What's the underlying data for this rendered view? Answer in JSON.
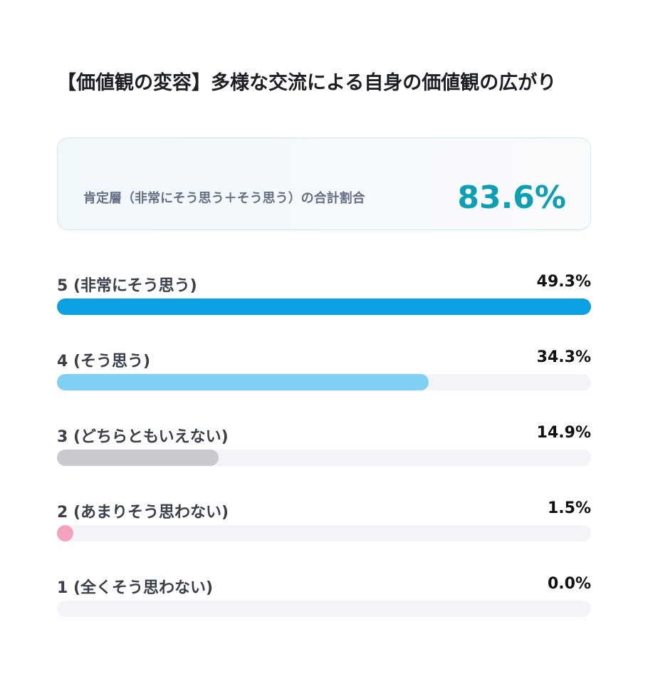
{
  "chart_data": {
    "type": "bar",
    "orientation": "horizontal",
    "title": "【価値観の変容】多様な交流による自身の価値観の広がり",
    "summary": {
      "label": "肯定層（非常にそう思う＋そう思う）の合計割合",
      "value": "83.6%"
    },
    "categories": [
      "5 (非常にそう思う)",
      "4 (そう思う)",
      "3 (どちらともいえない)",
      "2 (あまりそう思わない)",
      "1 (全くそう思わない)"
    ],
    "values": [
      49.3,
      34.3,
      14.9,
      1.5,
      0.0
    ],
    "value_labels": [
      "49.3%",
      "34.3%",
      "14.9%",
      "1.5%",
      "0.0%"
    ],
    "colors": [
      "#0aa0e2",
      "#80cff4",
      "#c9c9ce",
      "#f4a3bd",
      "#e0e0e6"
    ]
  }
}
